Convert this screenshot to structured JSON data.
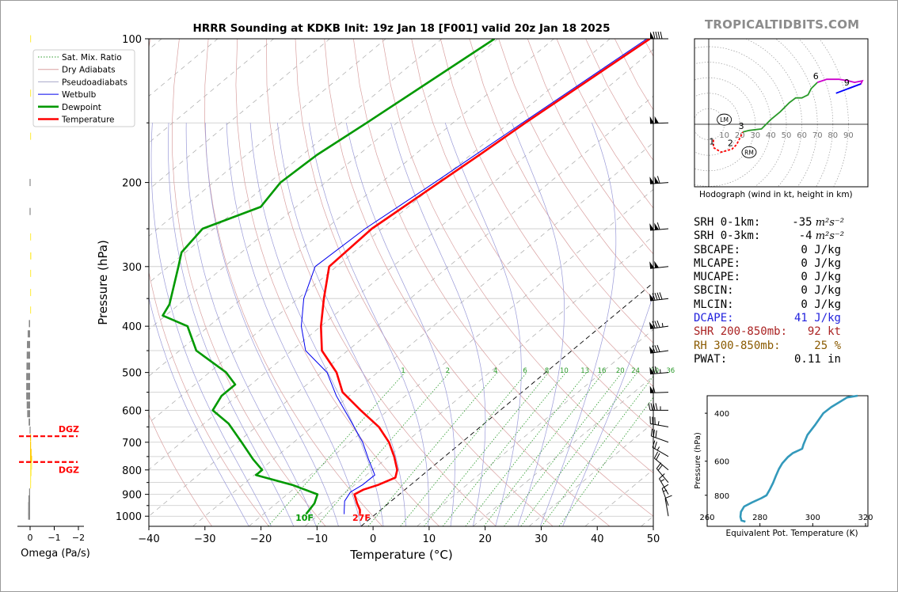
{
  "title": "HRRR Sounding at KDKB Init: 19z Jan 18 [F001] valid 20z Jan 18 2025",
  "brand": "TROPICALTIDBITS.COM",
  "colors": {
    "temperature": "#ff0000",
    "dewpoint": "#009900",
    "wetbulb": "#0000ee",
    "dry_adiabat": "#d9a0a0",
    "moist_adiabat": "#9a9ad8",
    "mixing_ratio": "#2a9a2a",
    "hodograph_high": "#0000ff",
    "hodograph_mid": "#cc00cc",
    "hodograph_low": "#2a9a2a",
    "theta_e": "#3399bb",
    "dcape": "#2222dd",
    "shear": "#aa2222",
    "rh": "#8a5a00"
  },
  "chart_data": [
    {
      "type": "line",
      "subtype": "skew-t log-p sounding",
      "title": "HRRR Sounding at KDKB Init: 19z Jan 18 [F001] valid 20z Jan 18 2025",
      "xlabel": "Temperature (°C)",
      "ylabel": "Pressure (hPa)",
      "x_ticks": [
        "−40",
        "−30",
        "−20",
        "−10",
        "0",
        "10",
        "20",
        "30",
        "40",
        "50"
      ],
      "x_tick_values": [
        -40,
        -30,
        -20,
        -10,
        0,
        10,
        20,
        30,
        40,
        50
      ],
      "y_ticks": [
        "100",
        "200",
        "300",
        "400",
        "500",
        "600",
        "700",
        "800",
        "900",
        "1000"
      ],
      "y_tick_values": [
        100,
        200,
        300,
        400,
        500,
        600,
        700,
        800,
        900,
        1000
      ],
      "xlim": [
        -40,
        50
      ],
      "ylim": [
        1050,
        100
      ],
      "y_scale": "log",
      "legend_position": "top-left",
      "legend": [
        "Sat. Mix. Ratio",
        "Dry Adiabats",
        "Pseudoadiabats",
        "Wetbulb",
        "Dewpoint",
        "Temperature"
      ],
      "mixing_ratio_labels": [
        "1",
        "2",
        "4",
        "6",
        "8",
        "10",
        "13",
        "16",
        "20",
        "24",
        "30",
        "36"
      ],
      "mixing_ratio_values": [
        1,
        2,
        4,
        6,
        8,
        10,
        13,
        16,
        20,
        24,
        30,
        36
      ],
      "surface_labels": {
        "dewpoint": "10F",
        "temperature": "27F"
      },
      "series": [
        {
          "name": "Temperature",
          "points": [
            [
              100,
              -52.9
            ],
            [
              150,
              -57.1
            ],
            [
              175,
              -58.4
            ],
            [
              200,
              -59.7
            ],
            [
              250,
              -61.8
            ],
            [
              300,
              -61.3
            ],
            [
              350,
              -55.4
            ],
            [
              400,
              -50.0
            ],
            [
              450,
              -44.6
            ],
            [
              500,
              -37.3
            ],
            [
              550,
              -32.0
            ],
            [
              600,
              -24.9
            ],
            [
              650,
              -18.1
            ],
            [
              700,
              -13.0
            ],
            [
              750,
              -9.0
            ],
            [
              800,
              -5.6
            ],
            [
              830,
              -4.3
            ],
            [
              860,
              -5.8
            ],
            [
              880,
              -7.4
            ],
            [
              900,
              -8.0
            ],
            [
              940,
              -5.6
            ],
            [
              970,
              -3.7
            ],
            [
              990,
              -2.8
            ]
          ]
        },
        {
          "name": "Dewpoint",
          "points": [
            [
              100,
              -80.6
            ],
            [
              150,
              -85.4
            ],
            [
              175,
              -87.4
            ],
            [
              200,
              -88.0
            ],
            [
              225,
              -86.3
            ],
            [
              250,
              -92.0
            ],
            [
              280,
              -90.7
            ],
            [
              300,
              -88.2
            ],
            [
              330,
              -84.8
            ],
            [
              360,
              -81.7
            ],
            [
              380,
              -80.5
            ],
            [
              400,
              -73.8
            ],
            [
              450,
              -67.0
            ],
            [
              500,
              -57.0
            ],
            [
              530,
              -52.8
            ],
            [
              560,
              -52.8
            ],
            [
              600,
              -51.3
            ],
            [
              640,
              -45.6
            ],
            [
              700,
              -39.3
            ],
            [
              760,
              -33.6
            ],
            [
              800,
              -29.7
            ],
            [
              820,
              -29.7
            ],
            [
              860,
              -21.1
            ],
            [
              900,
              -14.6
            ],
            [
              940,
              -13.2
            ],
            [
              990,
              -12.4
            ]
          ]
        },
        {
          "name": "Wetbulb",
          "points": [
            [
              100,
              -53.4
            ],
            [
              150,
              -57.6
            ],
            [
              200,
              -60.5
            ],
            [
              250,
              -63.0
            ],
            [
              300,
              -63.8
            ],
            [
              350,
              -59.0
            ],
            [
              400,
              -53.5
            ],
            [
              450,
              -47.5
            ],
            [
              500,
              -39.0
            ],
            [
              560,
              -32.3
            ],
            [
              620,
              -25.6
            ],
            [
              700,
              -17.7
            ],
            [
              760,
              -13.0
            ],
            [
              820,
              -8.5
            ],
            [
              860,
              -8.6
            ],
            [
              890,
              -9.2
            ],
            [
              930,
              -8.3
            ],
            [
              970,
              -6.5
            ],
            [
              990,
              -5.6
            ]
          ]
        }
      ],
      "omega": {
        "xlabel": "Omega (Pa/s)",
        "x_ticks": [
          "0",
          "−1",
          "−2"
        ],
        "x_tick_values": [
          0,
          -1,
          -2
        ],
        "dgz_label": "DGZ",
        "dgz_levels": [
          680,
          770
        ],
        "values": [
          [
            100,
            -0.02
          ],
          [
            130,
            -0.03
          ],
          [
            160,
            -0.03
          ],
          [
            200,
            0.02
          ],
          [
            230,
            0.02
          ],
          [
            260,
            -0.03
          ],
          [
            285,
            -0.05
          ],
          [
            310,
            -0.04
          ],
          [
            340,
            -0.03
          ],
          [
            370,
            -0.02
          ],
          [
            395,
            0.05
          ],
          [
            415,
            0.1
          ],
          [
            437,
            0.13
          ],
          [
            460,
            0.14
          ],
          [
            485,
            0.15
          ],
          [
            510,
            0.16
          ],
          [
            535,
            0.16
          ],
          [
            560,
            0.16
          ],
          [
            585,
            0.14
          ],
          [
            610,
            0.12
          ],
          [
            635,
            0.06
          ],
          [
            660,
            0.02
          ],
          [
            685,
            -0.02
          ],
          [
            710,
            -0.04
          ],
          [
            735,
            -0.06
          ],
          [
            760,
            -0.08
          ],
          [
            785,
            -0.08
          ],
          [
            810,
            -0.06
          ],
          [
            835,
            -0.04
          ],
          [
            860,
            -0.01
          ],
          [
            890,
            0.04
          ],
          [
            920,
            0.07
          ],
          [
            950,
            0.08
          ],
          [
            980,
            0.08
          ],
          [
            1000,
            0.08
          ]
        ]
      },
      "wind_barbs": [
        {
          "p": 100,
          "dir": 270,
          "kt": 90
        },
        {
          "p": 150,
          "dir": 268,
          "kt": 100
        },
        {
          "p": 200,
          "dir": 266,
          "kt": 110
        },
        {
          "p": 250,
          "dir": 265,
          "kt": 110
        },
        {
          "p": 300,
          "dir": 264,
          "kt": 100
        },
        {
          "p": 350,
          "dir": 263,
          "kt": 90
        },
        {
          "p": 400,
          "dir": 262,
          "kt": 85
        },
        {
          "p": 450,
          "dir": 262,
          "kt": 80
        },
        {
          "p": 500,
          "dir": 265,
          "kt": 75
        },
        {
          "p": 550,
          "dir": 268,
          "kt": 60
        },
        {
          "p": 600,
          "dir": 270,
          "kt": 45
        },
        {
          "p": 650,
          "dir": 280,
          "kt": 35
        },
        {
          "p": 700,
          "dir": 290,
          "kt": 30
        },
        {
          "p": 750,
          "dir": 300,
          "kt": 25
        },
        {
          "p": 800,
          "dir": 310,
          "kt": 20
        },
        {
          "p": 850,
          "dir": 320,
          "kt": 20
        },
        {
          "p": 900,
          "dir": 330,
          "kt": 15
        },
        {
          "p": 950,
          "dir": 340,
          "kt": 15
        },
        {
          "p": 1000,
          "dir": 350,
          "kt": 12
        }
      ]
    },
    {
      "type": "line",
      "subtype": "hodograph",
      "caption": "Hodograph (wind in kt, height in km)",
      "ring_labels": [
        "10",
        "20",
        "30",
        "40",
        "50",
        "60",
        "70",
        "80",
        "90"
      ],
      "ring_values": [
        10,
        20,
        30,
        40,
        50,
        60,
        70,
        80,
        90
      ],
      "height_labels": [
        "1",
        "2",
        "3",
        "6",
        "9"
      ],
      "markers": [
        "LM",
        "RM"
      ],
      "marker_points": {
        "LM": [
          10,
          3
        ],
        "RM": [
          26,
          -18
        ]
      },
      "points": [
        [
          3,
          -10
        ],
        [
          3,
          -15
        ],
        [
          8,
          -18
        ],
        [
          15,
          -16
        ],
        [
          18,
          -13
        ],
        [
          22,
          -5
        ],
        [
          26,
          -4
        ],
        [
          34,
          -3
        ],
        [
          40,
          3
        ],
        [
          46,
          8
        ],
        [
          52,
          14
        ],
        [
          56,
          17
        ],
        [
          60,
          17
        ],
        [
          64,
          19
        ],
        [
          66,
          23
        ],
        [
          70,
          27
        ],
        [
          76,
          29
        ],
        [
          84,
          29
        ],
        [
          90,
          28
        ],
        [
          94,
          27
        ],
        [
          99,
          28
        ],
        [
          98,
          26
        ],
        [
          90,
          23
        ],
        [
          82,
          20
        ]
      ],
      "height_point_index": {
        "1": 1,
        "2": 3,
        "3": 5,
        "6": 15,
        "9": 22
      }
    },
    {
      "type": "line",
      "subtype": "equivalent potential temperature profile",
      "xlabel": "Equivalent Pot. Temperature (K)",
      "ylabel": "Pressure (hPa)",
      "x_ticks": [
        "260",
        "280",
        "300",
        "320"
      ],
      "x_tick_values": [
        260,
        280,
        300,
        320
      ],
      "y_ticks": [
        "400",
        "600",
        "800"
      ],
      "y_tick_values": [
        400,
        600,
        800
      ],
      "points": [
        [
          1000,
          274.5
        ],
        [
          990,
          273
        ],
        [
          960,
          272.6
        ],
        [
          920,
          272.8
        ],
        [
          880,
          274
        ],
        [
          850,
          277
        ],
        [
          820,
          280.5
        ],
        [
          800,
          282.5
        ],
        [
          760,
          283.8
        ],
        [
          720,
          285
        ],
        [
          680,
          286
        ],
        [
          640,
          287.2
        ],
        [
          610,
          288.5
        ],
        [
          580,
          290.5
        ],
        [
          560,
          292.5
        ],
        [
          540,
          296
        ],
        [
          520,
          296.5
        ],
        [
          480,
          298
        ],
        [
          440,
          301
        ],
        [
          400,
          304
        ],
        [
          380,
          307
        ],
        [
          350,
          313
        ],
        [
          345,
          317
        ]
      ]
    }
  ],
  "indices": [
    {
      "label": "SRH 0-1km:",
      "value": "-35",
      "unit": "m²s⁻²",
      "color": "#000000"
    },
    {
      "label": "SRH 0-3km:",
      "value": "-4",
      "unit": "m²s⁻²",
      "color": "#000000"
    },
    {
      "label": "SBCAPE:",
      "value": "0 J/kg",
      "color": "#000000"
    },
    {
      "label": "MLCAPE:",
      "value": "0 J/kg",
      "color": "#000000"
    },
    {
      "label": "MUCAPE:",
      "value": "0 J/kg",
      "color": "#000000"
    },
    {
      "label": "SBCIN:",
      "value": "0 J/kg",
      "color": "#000000"
    },
    {
      "label": "MLCIN:",
      "value": "0 J/kg",
      "color": "#000000"
    },
    {
      "label": "DCAPE:",
      "value": "41 J/kg",
      "color": "#2222dd"
    },
    {
      "label": "SHR 200-850mb:",
      "value": "92 kt",
      "color": "#aa2222"
    },
    {
      "label": "RH 300-850mb:",
      "value": "25 %",
      "color": "#8a5a00"
    },
    {
      "label": "PWAT:",
      "value": "0.11 in",
      "color": "#000000"
    }
  ]
}
